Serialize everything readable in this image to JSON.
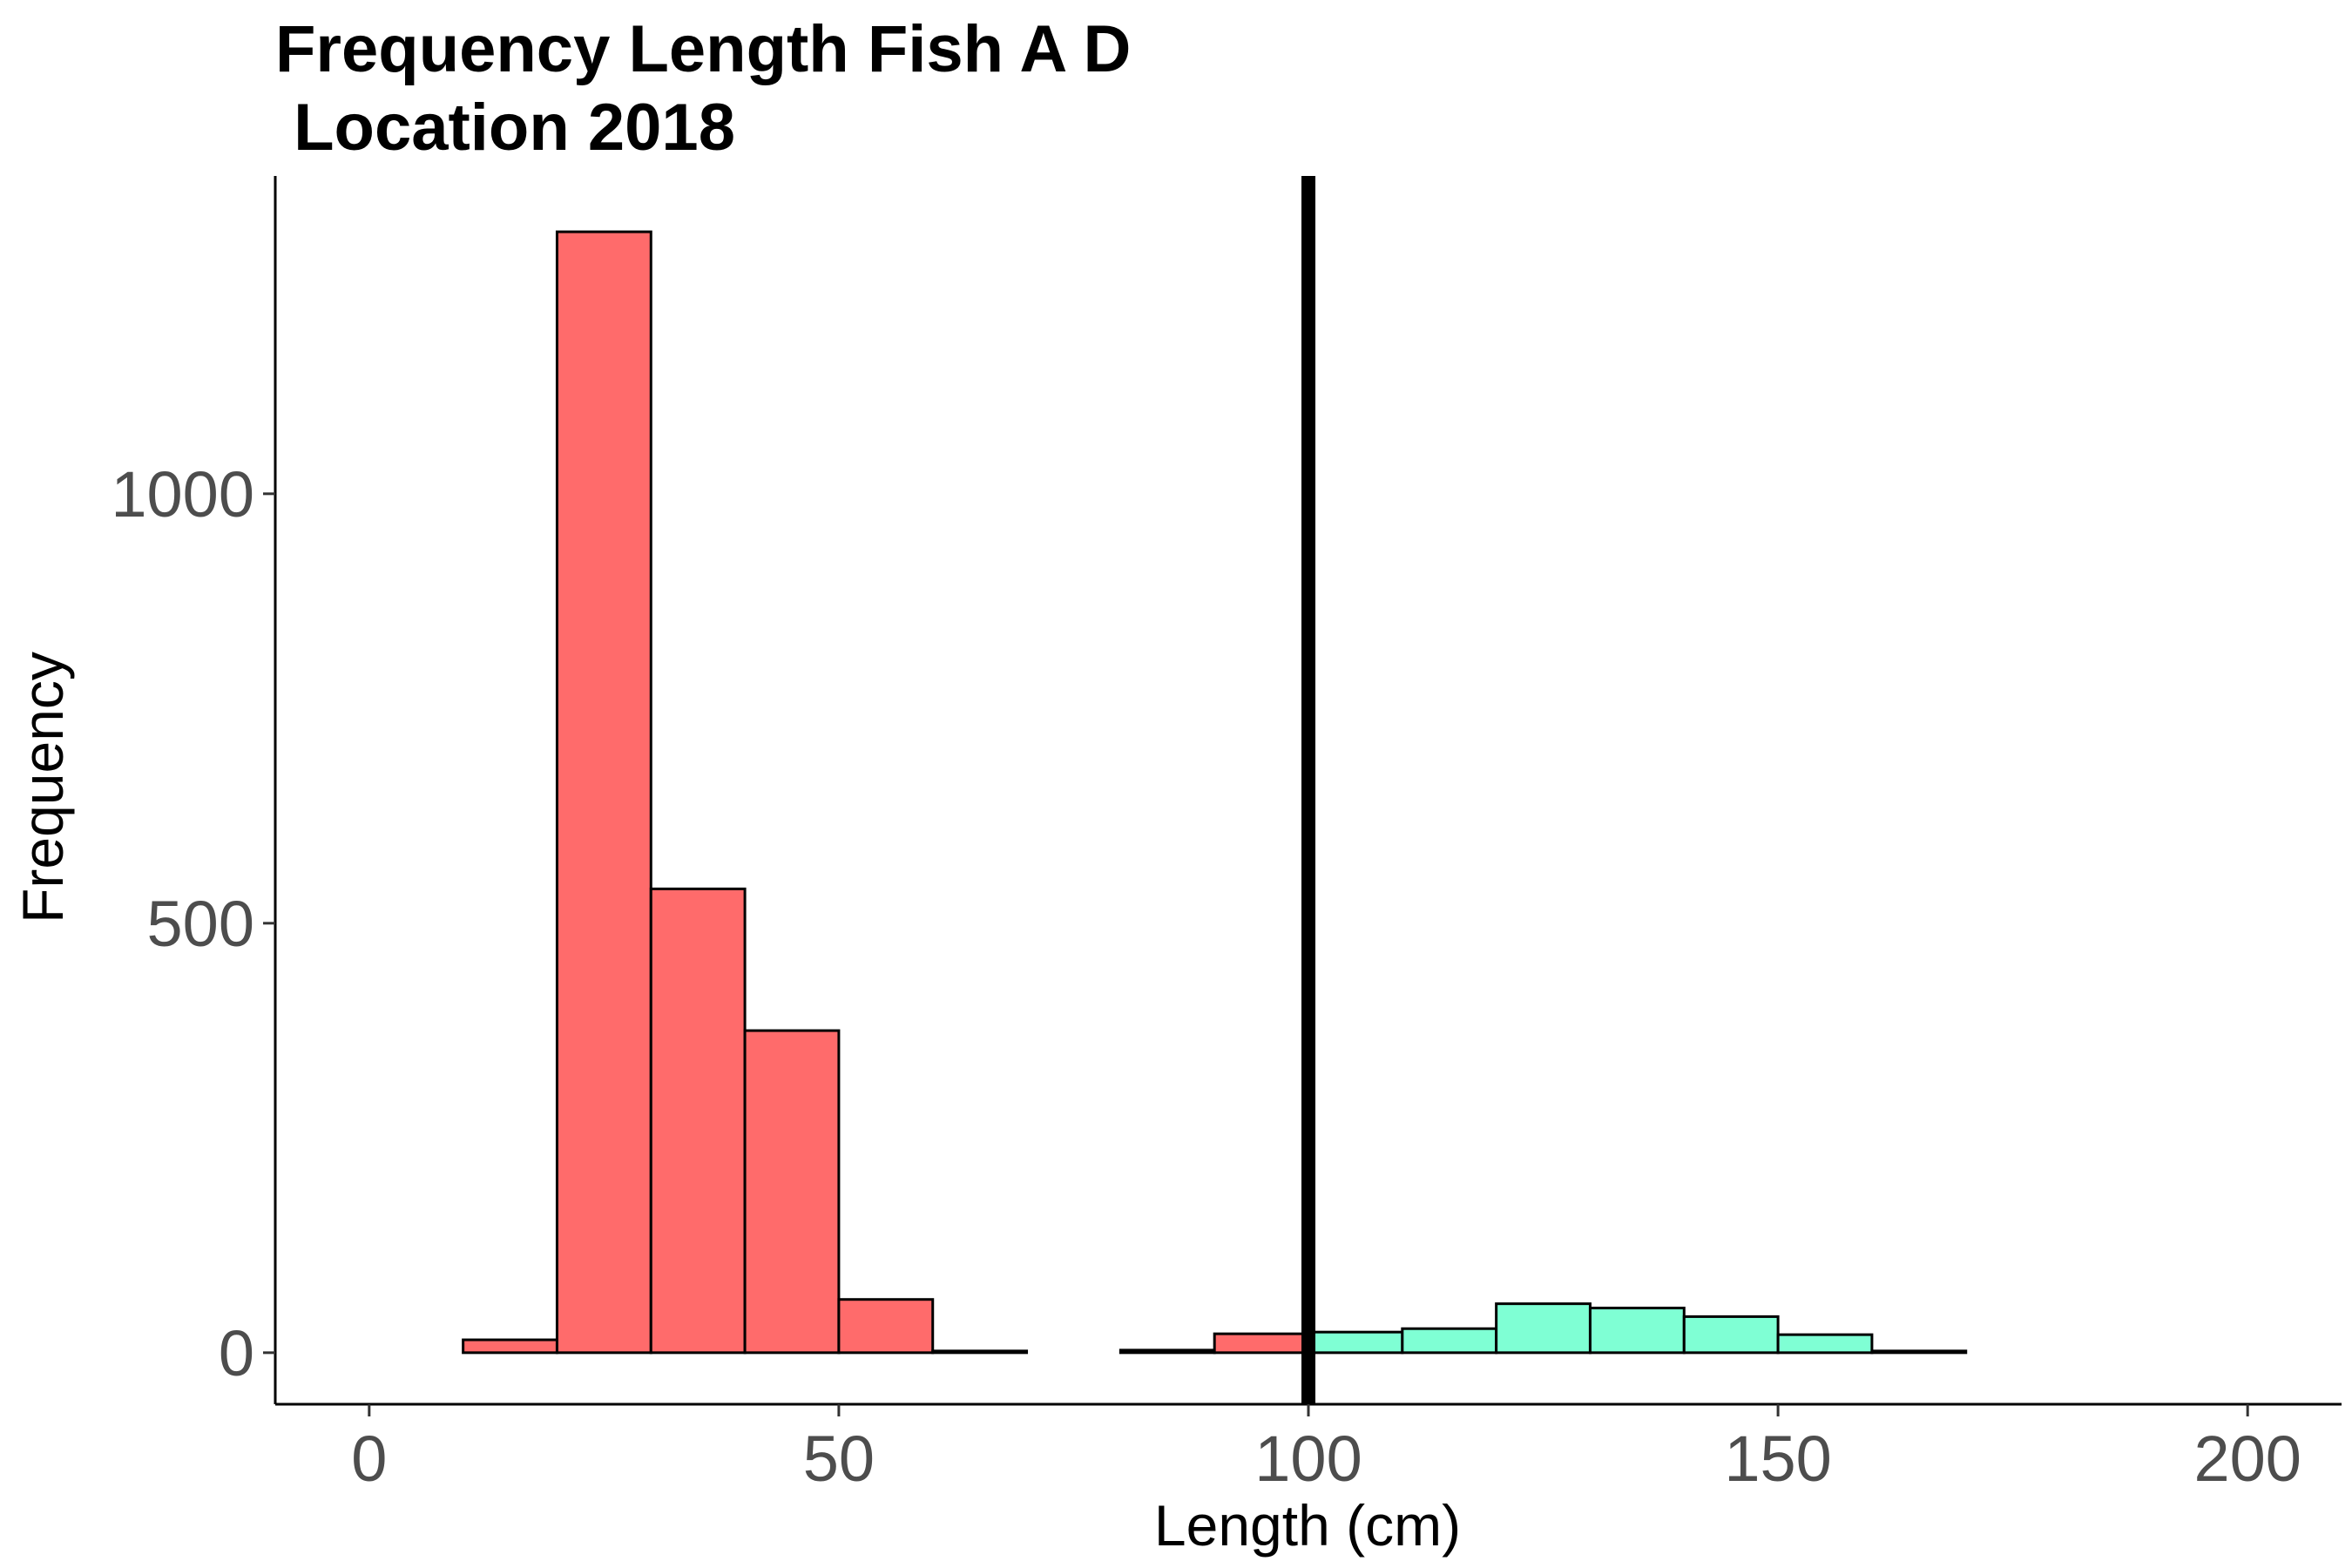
{
  "chart_data": {
    "type": "bar",
    "title_lines": [
      "Frequency Length Fish A D",
      " Location 2018"
    ],
    "xlabel": "Length (cm)",
    "ylabel": "Frequency",
    "xlim": [
      -10,
      210
    ],
    "ylim": [
      -60,
      1370
    ],
    "x_ticks": [
      0,
      50,
      100,
      150,
      200
    ],
    "x_tick_labels": [
      "0",
      "50",
      "100",
      "150",
      "200"
    ],
    "y_ticks": [
      0,
      500,
      1000
    ],
    "y_tick_labels": [
      "0",
      "500",
      "1000"
    ],
    "bin_width": 10,
    "bins": [
      {
        "start": 0,
        "end": 10,
        "count": 0,
        "group": "below"
      },
      {
        "start": 10,
        "end": 20,
        "count": 15,
        "group": "below"
      },
      {
        "start": 20,
        "end": 30,
        "count": 1305,
        "group": "below"
      },
      {
        "start": 30,
        "end": 40,
        "count": 540,
        "group": "below"
      },
      {
        "start": 40,
        "end": 50,
        "count": 375,
        "group": "below"
      },
      {
        "start": 50,
        "end": 60,
        "count": 62,
        "group": "below"
      },
      {
        "start": 60,
        "end": 70,
        "count": 2,
        "group": "below"
      },
      {
        "start": 70,
        "end": 80,
        "count": 0,
        "group": "below"
      },
      {
        "start": 80,
        "end": 90,
        "count": 3,
        "group": "below"
      },
      {
        "start": 90,
        "end": 100,
        "count": 22,
        "group": "below"
      },
      {
        "start": 100,
        "end": 110,
        "count": 24,
        "group": "above"
      },
      {
        "start": 110,
        "end": 120,
        "count": 28,
        "group": "above"
      },
      {
        "start": 120,
        "end": 130,
        "count": 57,
        "group": "above"
      },
      {
        "start": 130,
        "end": 140,
        "count": 52,
        "group": "above"
      },
      {
        "start": 140,
        "end": 150,
        "count": 42,
        "group": "above"
      },
      {
        "start": 150,
        "end": 160,
        "count": 21,
        "group": "above"
      },
      {
        "start": 160,
        "end": 170,
        "count": 2,
        "group": "above"
      },
      {
        "start": 170,
        "end": 180,
        "count": 0,
        "group": "above"
      },
      {
        "start": 180,
        "end": 190,
        "count": 0,
        "group": "above"
      },
      {
        "start": 190,
        "end": 200,
        "count": 0,
        "group": "above"
      }
    ],
    "colors": {
      "below": "#ff6b6b",
      "above": "#7fffd4",
      "outline": "#000000"
    },
    "reference_line": {
      "x": 100,
      "color": "#000000"
    },
    "legend": "none",
    "grid": false
  }
}
